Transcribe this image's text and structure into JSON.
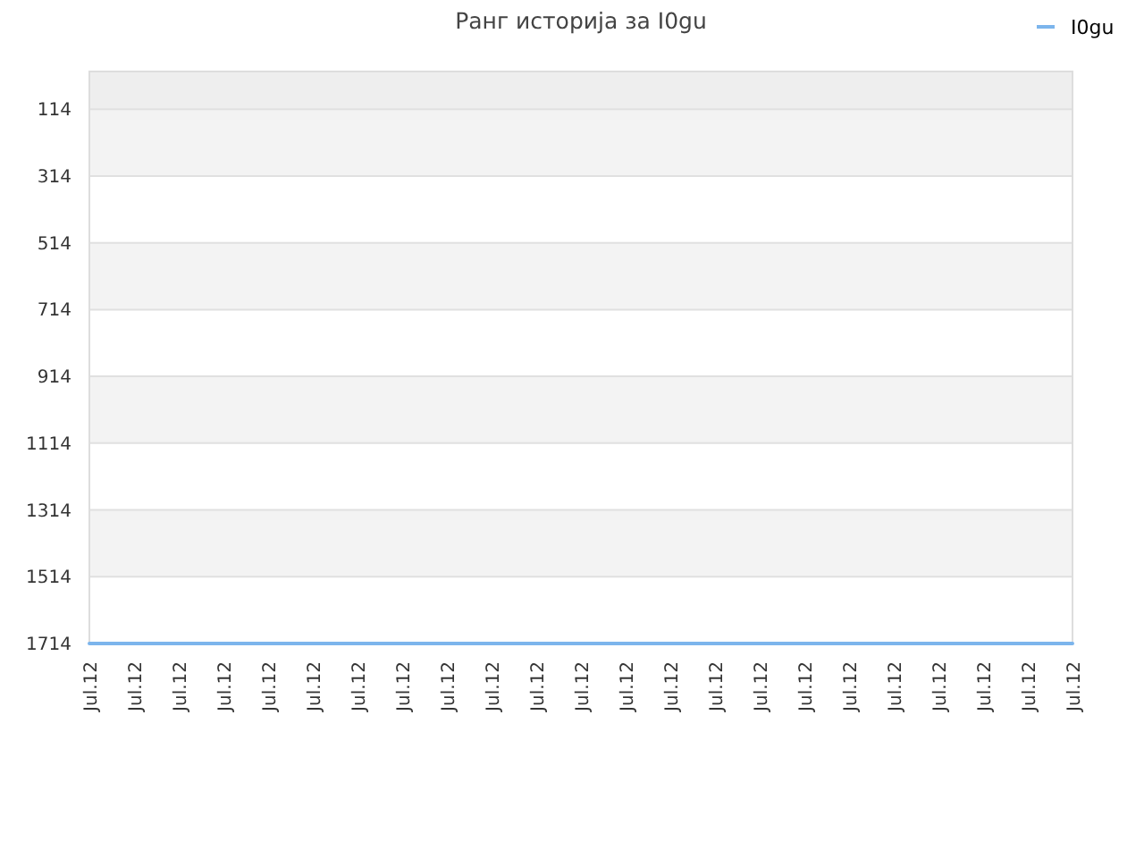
{
  "chart_data": {
    "type": "line",
    "title": "Ранг историја за I0gu",
    "categories": [
      "Jul.12",
      "Jul.12",
      "Jul.12",
      "Jul.12",
      "Jul.12",
      "Jul.12",
      "Jul.12",
      "Jul.12",
      "Jul.12",
      "Jul.12",
      "Jul.12",
      "Jul.12",
      "Jul.12",
      "Jul.12",
      "Jul.12",
      "Jul.12",
      "Jul.12",
      "Jul.12",
      "Jul.12",
      "Jul.12",
      "Jul.12",
      "Jul.12",
      "Jul.12"
    ],
    "ylim": [
      1714,
      1
    ],
    "yticks": [
      114,
      314,
      514,
      714,
      914,
      1114,
      1314,
      1514,
      1714
    ],
    "series": [
      {
        "name": "I0gu",
        "color": "#7cb5ec",
        "values": [
          1714,
          1714,
          1714,
          1714,
          1714,
          1714,
          1714,
          1714,
          1714,
          1714,
          1714,
          1714,
          1714,
          1714,
          1714,
          1714,
          1714,
          1714,
          1714,
          1714,
          1714,
          1714,
          1714
        ]
      }
    ],
    "bands": [
      {
        "axis": "y",
        "from": 1,
        "to": 114,
        "color": "#eeeeee"
      },
      {
        "axis": "y",
        "from": 114,
        "to": 314,
        "color": "#f3f3f3"
      },
      {
        "axis": "y",
        "from": 514,
        "to": 714,
        "color": "#f3f3f3"
      },
      {
        "axis": "y",
        "from": 914,
        "to": 1114,
        "color": "#f3f3f3"
      },
      {
        "axis": "y",
        "from": 1314,
        "to": 1514,
        "color": "#f3f3f3"
      }
    ],
    "grid": "y",
    "legend": "top right",
    "marker": "none",
    "line_style": "solid"
  }
}
